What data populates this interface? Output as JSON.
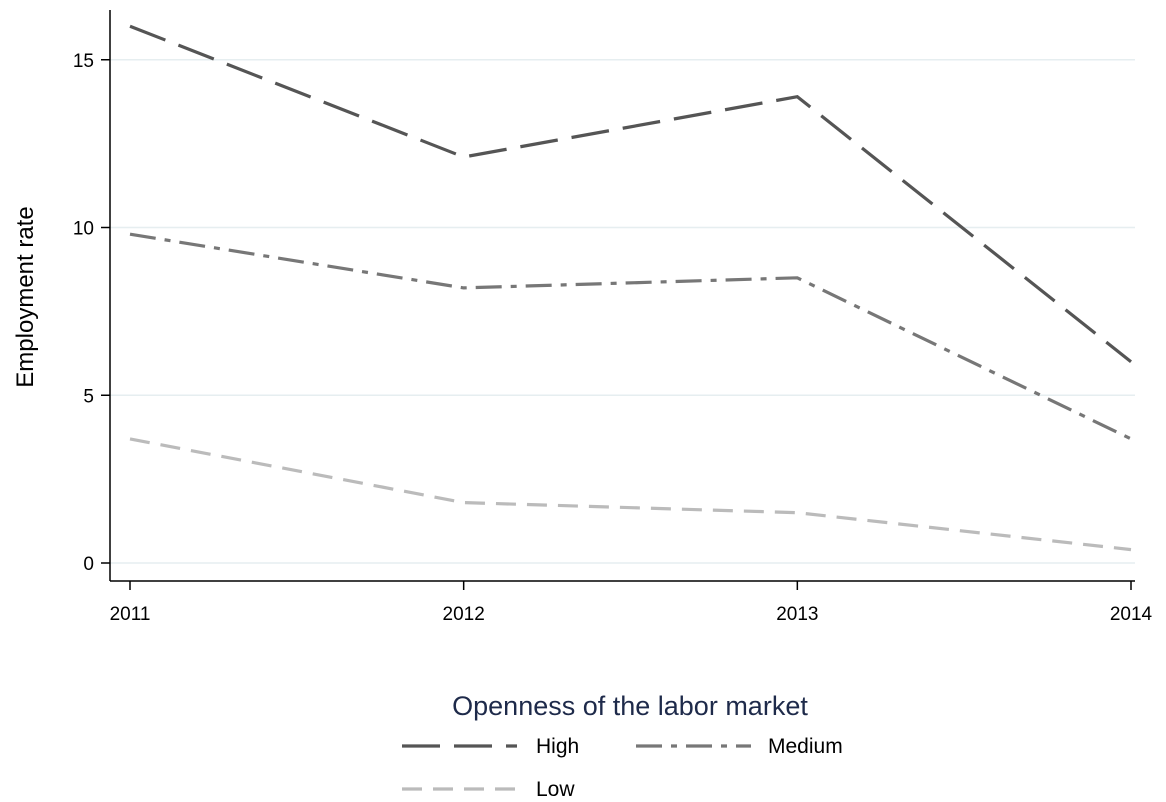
{
  "chart_data": {
    "type": "line",
    "x": [
      "2011",
      "2012",
      "2013",
      "2014"
    ],
    "series": [
      {
        "name": "High",
        "values": [
          16.0,
          12.1,
          13.9,
          6.0
        ],
        "color": "#555555",
        "dash": "long-dash"
      },
      {
        "name": "Medium",
        "values": [
          9.8,
          8.2,
          8.5,
          3.7
        ],
        "color": "#777777",
        "dash": "dash-dot"
      },
      {
        "name": "Low",
        "values": [
          3.7,
          1.8,
          1.5,
          0.4
        ],
        "color": "#bbbbbb",
        "dash": "short-dash"
      }
    ],
    "ylabel": "Employment rate",
    "xlabel": "",
    "yticks": [
      0,
      5,
      10,
      15
    ],
    "xticks": [
      "2011",
      "2012",
      "2013",
      "2014"
    ],
    "ylim": [
      0,
      16
    ],
    "grid": true,
    "legend": {
      "title": "Openness of the labor market",
      "placement": "bottom"
    }
  }
}
